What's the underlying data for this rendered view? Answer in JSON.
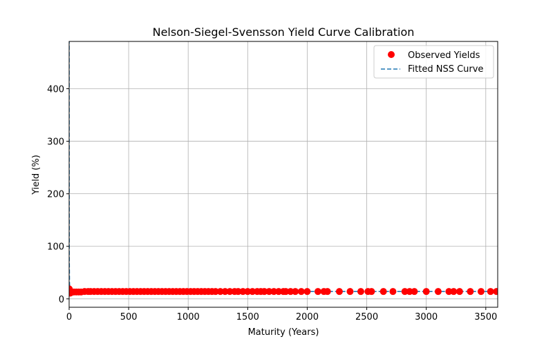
{
  "chart_data": {
    "type": "scatter",
    "title": "Nelson-Siegel-Svensson Yield Curve Calibration",
    "xlabel": "Maturity (Years)",
    "ylabel": "Yield (%)",
    "xlim": [
      0,
      3600
    ],
    "ylim": [
      -16,
      490
    ],
    "xticks": [
      0,
      500,
      1000,
      1500,
      2000,
      2500,
      3000,
      3500
    ],
    "yticks": [
      0,
      100,
      200,
      300,
      400
    ],
    "grid": true,
    "legend_position": "upper right",
    "series": [
      {
        "name": "Observed Yields",
        "kind": "scatter",
        "color": "#ff0000",
        "x": [
          0.5,
          1,
          2,
          3,
          5,
          7,
          10,
          15,
          20,
          30,
          40,
          60,
          80,
          100,
          130,
          160,
          180,
          210,
          240,
          270,
          300,
          330,
          360,
          390,
          420,
          450,
          480,
          510,
          540,
          570,
          600,
          630,
          660,
          690,
          720,
          750,
          780,
          810,
          840,
          870,
          900,
          930,
          960,
          990,
          1020,
          1050,
          1080,
          1110,
          1140,
          1170,
          1200,
          1230,
          1270,
          1310,
          1350,
          1390,
          1420,
          1460,
          1500,
          1540,
          1580,
          1610,
          1640,
          1680,
          1720,
          1760,
          1800,
          1820,
          1860,
          1900,
          1950,
          2000,
          2090,
          2140,
          2170,
          2270,
          2360,
          2450,
          2510,
          2540,
          2640,
          2720,
          2820,
          2860,
          2900,
          3000,
          3100,
          3190,
          3230,
          3280,
          3370,
          3460,
          3540,
          3590
        ],
        "y": [
          16,
          19,
          17,
          15,
          13,
          12,
          11,
          12,
          13,
          13,
          13,
          13,
          13,
          13,
          14,
          14,
          14,
          14,
          14,
          14,
          14,
          14,
          14,
          14,
          14,
          14,
          14,
          14,
          14,
          14,
          14,
          14,
          14,
          14,
          14,
          14,
          14,
          14,
          14,
          14,
          14,
          14,
          14,
          14,
          14,
          14,
          14,
          14,
          14,
          14,
          14,
          14,
          14,
          14,
          14,
          14,
          14,
          14,
          14,
          14,
          14,
          14,
          14,
          14,
          14,
          14,
          14,
          14,
          14,
          14,
          14,
          14,
          14,
          14,
          14,
          14,
          14,
          14,
          14,
          14,
          14,
          14,
          14,
          14,
          14,
          14,
          14,
          14,
          14,
          14,
          14,
          14,
          14,
          14
        ]
      },
      {
        "name": "Fitted NSS Curve",
        "kind": "line",
        "dash": true,
        "color": "#1f77b4",
        "x": [
          0,
          1,
          3,
          6,
          10,
          20,
          40,
          70,
          100,
          150,
          200,
          300,
          500,
          1000,
          2000,
          3000,
          3600
        ],
        "y": [
          600,
          80,
          30,
          20,
          16,
          14,
          13.5,
          13.5,
          13.7,
          13.8,
          13.9,
          14,
          14,
          14,
          14,
          14,
          14
        ]
      }
    ]
  }
}
